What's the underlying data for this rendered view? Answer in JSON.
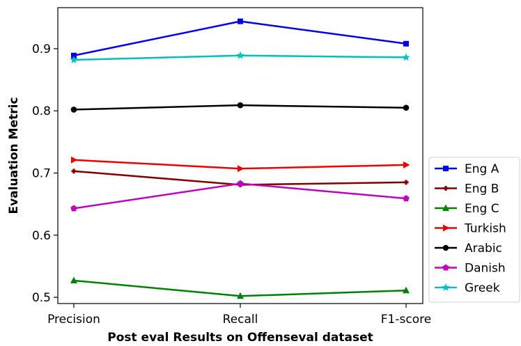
{
  "chart_data": {
    "type": "line",
    "title": "",
    "xlabel": "Post eval Results on Offenseval dataset",
    "ylabel": "Evaluation Metric",
    "categories": [
      "Precision",
      "Recall",
      "F1-score"
    ],
    "yticks": [
      "0.5",
      "0.6",
      "0.7",
      "0.8",
      "0.9"
    ],
    "ytick_values": [
      0.5,
      0.6,
      0.7,
      0.8,
      0.9
    ],
    "ylim": [
      0.49,
      0.966
    ],
    "grid": false,
    "legend_position": "outside lower right",
    "series": [
      {
        "name": "Eng A",
        "values": [
          0.889,
          0.944,
          0.908
        ],
        "color": "#0000ee",
        "marker": "square"
      },
      {
        "name": "Eng B",
        "values": [
          0.703,
          0.681,
          0.685
        ],
        "color": "#800000",
        "marker": "plus"
      },
      {
        "name": "Eng C",
        "values": [
          0.527,
          0.502,
          0.511
        ],
        "color": "#008000",
        "marker": "triangle-up"
      },
      {
        "name": "Turkish",
        "values": [
          0.721,
          0.707,
          0.713
        ],
        "color": "#ee0000",
        "marker": "triangle-right"
      },
      {
        "name": "Arabic",
        "values": [
          0.802,
          0.809,
          0.805
        ],
        "color": "#000000",
        "marker": "circle"
      },
      {
        "name": "Danish",
        "values": [
          0.643,
          0.683,
          0.659
        ],
        "color": "#bf00bf",
        "marker": "pentagon"
      },
      {
        "name": "Greek",
        "values": [
          0.882,
          0.889,
          0.886
        ],
        "color": "#00bfbf",
        "marker": "star"
      }
    ]
  }
}
